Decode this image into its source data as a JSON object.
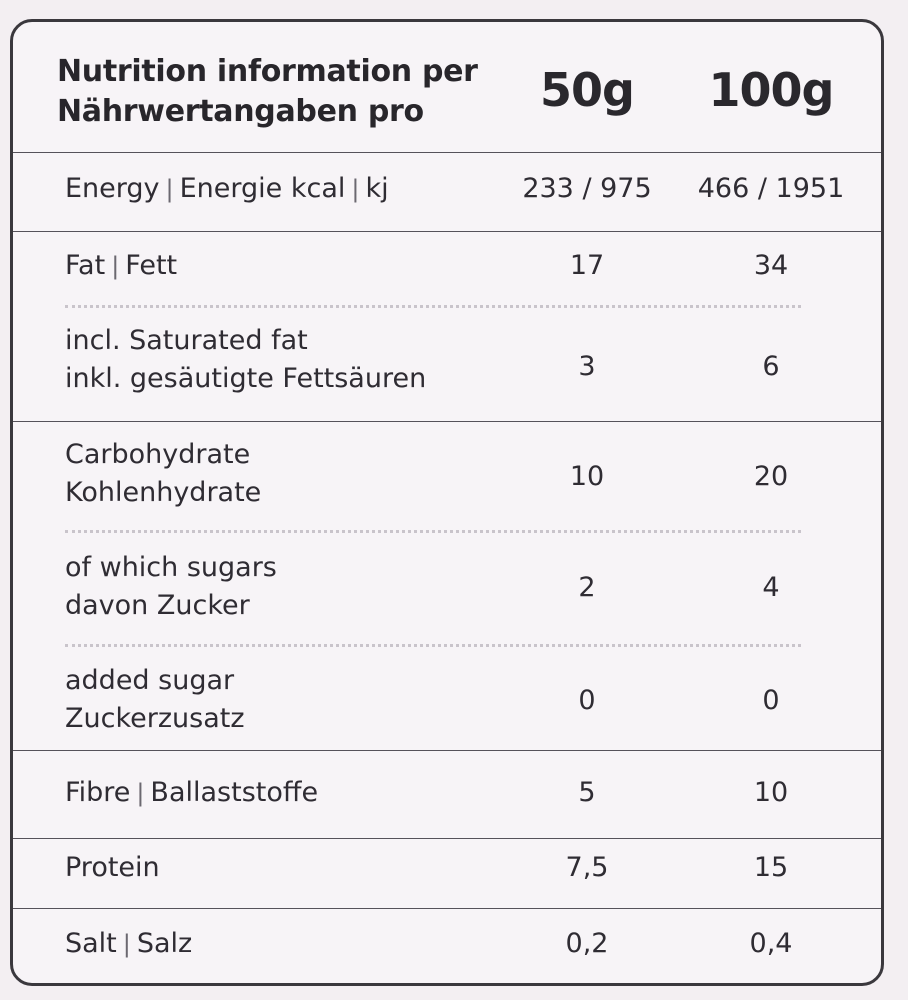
{
  "header": {
    "title_line1": "Nutrition information per",
    "title_line2": "Nährwertangaben pro",
    "col1": "50g",
    "col2": "100g"
  },
  "rows": [
    {
      "en": "Energy",
      "de": "Energie kcal",
      "unit": "kj",
      "v1": "233 / 975",
      "v2": "466 / 1951"
    },
    {
      "en": "Fat",
      "de": "Fett",
      "v1": "17",
      "v2": "34"
    },
    {
      "line1": "incl. Saturated fat",
      "line2": "inkl. gesäutigte Fettsäuren",
      "v1": "3",
      "v2": "6"
    },
    {
      "line1": "Carbohydrate",
      "line2": "Kohlenhydrate",
      "v1": "10",
      "v2": "20"
    },
    {
      "line1": "of which sugars",
      "line2": "davon Zucker",
      "v1": "2",
      "v2": "4"
    },
    {
      "line1": "added sugar",
      "line2": "Zuckerzusatz",
      "v1": "0",
      "v2": "0"
    },
    {
      "en": "Fibre",
      "de": "Ballaststoffe",
      "v1": "5",
      "v2": "10"
    },
    {
      "label": "Protein",
      "v1": "7,5",
      "v2": "15"
    },
    {
      "en": "Salt",
      "de": "Salz",
      "v1": "0,2",
      "v2": "0,4"
    }
  ],
  "separator": "|"
}
